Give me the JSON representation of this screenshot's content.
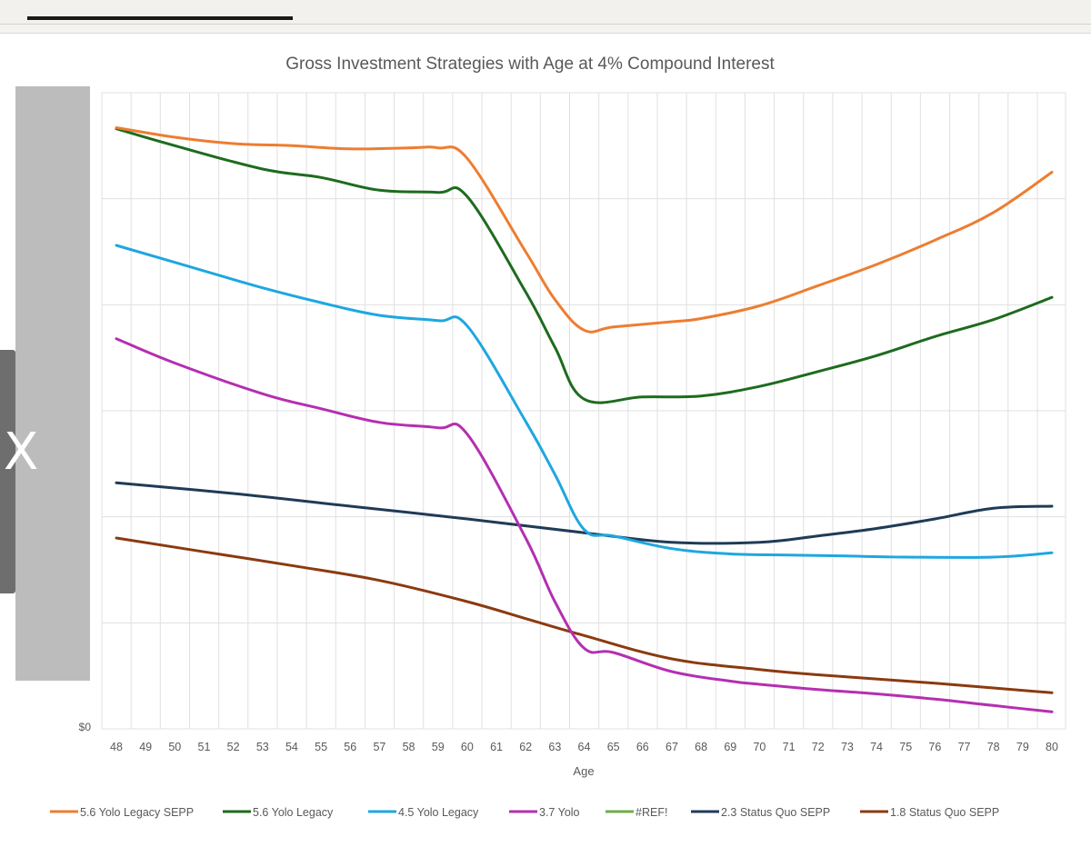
{
  "chart_data": {
    "type": "line",
    "title": "Gross Investment Strategies with Age at 4% Compound  Interest",
    "xlabel": "Age",
    "ylabel": "",
    "x": [
      48,
      49,
      50,
      51,
      52,
      53,
      54,
      55,
      56,
      57,
      58,
      59,
      60,
      61,
      62,
      63,
      64,
      65,
      66,
      67,
      68,
      69,
      70,
      71,
      72,
      73,
      74,
      75,
      76,
      77,
      78,
      79,
      80
    ],
    "y_tick_labels": [
      "$0"
    ],
    "ylim": [
      0,
      6
    ],
    "grid": true,
    "legend_position": "bottom",
    "series": [
      {
        "name": "5.6 Yolo Legacy SEPP",
        "color": "#ed7d31",
        "points": [
          [
            48,
            5.67
          ],
          [
            50,
            5.58
          ],
          [
            52,
            5.52
          ],
          [
            54,
            5.5
          ],
          [
            56,
            5.47
          ],
          [
            58,
            5.48
          ],
          [
            59,
            5.48
          ],
          [
            60,
            5.38
          ],
          [
            62,
            4.5
          ],
          [
            63,
            4.05
          ],
          [
            64,
            3.76
          ],
          [
            65,
            3.79
          ],
          [
            67,
            3.84
          ],
          [
            68,
            3.87
          ],
          [
            70,
            3.99
          ],
          [
            72,
            4.18
          ],
          [
            74,
            4.38
          ],
          [
            76,
            4.61
          ],
          [
            78,
            4.87
          ],
          [
            80,
            5.25
          ]
        ]
      },
      {
        "name": "5.6 Yolo Legacy",
        "color": "#1e6b1e",
        "points": [
          [
            48,
            5.66
          ],
          [
            50,
            5.5
          ],
          [
            53,
            5.28
          ],
          [
            55,
            5.2
          ],
          [
            57,
            5.08
          ],
          [
            59,
            5.06
          ],
          [
            60,
            5.02
          ],
          [
            62,
            4.12
          ],
          [
            63,
            3.6
          ],
          [
            64,
            3.11
          ],
          [
            66,
            3.13
          ],
          [
            68,
            3.14
          ],
          [
            70,
            3.23
          ],
          [
            72,
            3.37
          ],
          [
            74,
            3.52
          ],
          [
            76,
            3.7
          ],
          [
            78,
            3.86
          ],
          [
            80,
            4.07
          ]
        ]
      },
      {
        "name": "4.5 Yolo Legacy",
        "color": "#1ea7e0",
        "points": [
          [
            48,
            4.56
          ],
          [
            50,
            4.4
          ],
          [
            53,
            4.16
          ],
          [
            55,
            4.02
          ],
          [
            57,
            3.9
          ],
          [
            59,
            3.85
          ],
          [
            60,
            3.8
          ],
          [
            62,
            2.9
          ],
          [
            63,
            2.4
          ],
          [
            64,
            1.88
          ],
          [
            65,
            1.82
          ],
          [
            67,
            1.7
          ],
          [
            69,
            1.65
          ],
          [
            71,
            1.64
          ],
          [
            73,
            1.63
          ],
          [
            75,
            1.62
          ],
          [
            78,
            1.62
          ],
          [
            80,
            1.66
          ]
        ]
      },
      {
        "name": "3.7 Yolo",
        "color": "#b42fb1",
        "points": [
          [
            48,
            3.68
          ],
          [
            50,
            3.45
          ],
          [
            53,
            3.16
          ],
          [
            55,
            3.02
          ],
          [
            57,
            2.89
          ],
          [
            59,
            2.84
          ],
          [
            60,
            2.78
          ],
          [
            62,
            1.8
          ],
          [
            63,
            1.2
          ],
          [
            64,
            0.76
          ],
          [
            65,
            0.72
          ],
          [
            67,
            0.54
          ],
          [
            69,
            0.45
          ],
          [
            70,
            0.42
          ],
          [
            72,
            0.37
          ],
          [
            74,
            0.33
          ],
          [
            76,
            0.28
          ],
          [
            78,
            0.22
          ],
          [
            80,
            0.16
          ]
        ]
      },
      {
        "name": "#REF!",
        "color": "#70ad47",
        "points": []
      },
      {
        "name": "2.3 Status Quo SEPP",
        "color": "#1f3b57",
        "points": [
          [
            48,
            2.32
          ],
          [
            52,
            2.22
          ],
          [
            56,
            2.1
          ],
          [
            60,
            1.98
          ],
          [
            64,
            1.85
          ],
          [
            67,
            1.76
          ],
          [
            70,
            1.76
          ],
          [
            72,
            1.82
          ],
          [
            74,
            1.89
          ],
          [
            76,
            1.98
          ],
          [
            78,
            2.08
          ],
          [
            80,
            2.1
          ]
        ]
      },
      {
        "name": "1.8 Status Quo SEPP",
        "color": "#8b3a10",
        "points": [
          [
            48,
            1.8
          ],
          [
            51,
            1.67
          ],
          [
            54,
            1.54
          ],
          [
            57,
            1.4
          ],
          [
            60,
            1.2
          ],
          [
            62,
            1.04
          ],
          [
            64,
            0.88
          ],
          [
            67,
            0.66
          ],
          [
            70,
            0.56
          ],
          [
            72,
            0.51
          ],
          [
            76,
            0.43
          ],
          [
            80,
            0.34
          ]
        ]
      }
    ]
  },
  "ui": {
    "side_mark": "X"
  }
}
